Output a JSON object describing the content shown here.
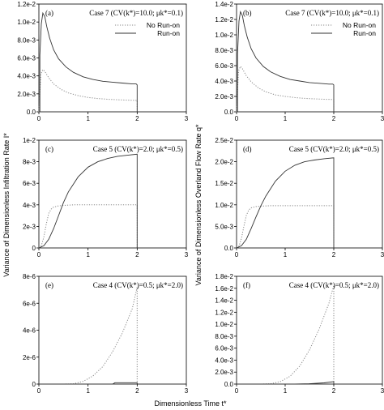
{
  "figure": {
    "ylabel_left": "Variance of Dimensionless Infiltration Rate I*",
    "ylabel_right": "Variance of Dimensionless Overland Flow Rate q*",
    "xlabel": "Dimensionless Time t*",
    "colors": {
      "run_on": "#333333",
      "no_run_on": "#888888"
    }
  },
  "chart_data": [
    {
      "type": "line",
      "id": "a",
      "label": "(a)",
      "case": "Case 7 (CV(k*)=10.0; μk*=0.1)",
      "xlim": [
        0,
        3
      ],
      "ylim": [
        0,
        0.012
      ],
      "xticks": [
        "0",
        "1",
        "2",
        "3"
      ],
      "yticks": [
        "0.0",
        "2.0e-3",
        "4.0e-3",
        "6.0e-3",
        "8.0e-3",
        "1.0e-2",
        "1.2e-2"
      ],
      "legend": [
        "No Run-on",
        "Run-on"
      ],
      "series": [
        {
          "name": "No Run-on",
          "style": "dotted",
          "x": [
            0,
            0.04,
            0.08,
            0.12,
            0.2,
            0.3,
            0.45,
            0.6,
            0.8,
            1.0,
            1.2,
            1.4,
            1.6,
            1.8,
            1.98,
            2.0,
            2.0
          ],
          "y": [
            0,
            0.0042,
            0.0047,
            0.0045,
            0.0038,
            0.0031,
            0.0025,
            0.0021,
            0.0018,
            0.0016,
            0.00148,
            0.0014,
            0.00134,
            0.0013,
            0.00127,
            0.00127,
            0
          ]
        },
        {
          "name": "Run-on",
          "style": "solid",
          "x": [
            0,
            0.02,
            0.02,
            0.05,
            0.08,
            0.12,
            0.16,
            0.22,
            0.3,
            0.4,
            0.55,
            0.7,
            0.9,
            1.1,
            1.3,
            1.5,
            1.7,
            1.9,
            1.98,
            2.0,
            2.0
          ],
          "y": [
            0,
            0,
            0.0063,
            0.0098,
            0.011,
            0.0106,
            0.0095,
            0.0082,
            0.0069,
            0.0059,
            0.005,
            0.0044,
            0.0039,
            0.0036,
            0.0034,
            0.0033,
            0.0032,
            0.0031,
            0.0031,
            0.003,
            0
          ]
        }
      ]
    },
    {
      "type": "line",
      "id": "b",
      "label": "(b)",
      "case": "Case 7 (CV(k*)=10.0; μk*=0.1)",
      "xlim": [
        0,
        3
      ],
      "ylim": [
        0,
        0.014
      ],
      "xticks": [
        "0",
        "1",
        "2",
        "3"
      ],
      "yticks": [
        "0.0",
        "2.0e-3",
        "4.0e-3",
        "6.0e-3",
        "8.0e-3",
        "1.0e-2",
        "1.2e-2",
        "1.4e-2"
      ],
      "legend": [
        "No Run-on",
        "Run-on"
      ],
      "series": [
        {
          "name": "No Run-on",
          "style": "dotted",
          "x": [
            0,
            0.04,
            0.08,
            0.12,
            0.2,
            0.3,
            0.45,
            0.6,
            0.8,
            1.0,
            1.2,
            1.4,
            1.6,
            1.8,
            1.98,
            2.0,
            2.0
          ],
          "y": [
            0,
            0.0053,
            0.0059,
            0.0056,
            0.0047,
            0.0039,
            0.0031,
            0.0026,
            0.0022,
            0.002,
            0.00185,
            0.00175,
            0.00168,
            0.00163,
            0.0016,
            0.0016,
            0
          ]
        },
        {
          "name": "Run-on",
          "style": "solid",
          "x": [
            0,
            0.02,
            0.02,
            0.05,
            0.08,
            0.12,
            0.16,
            0.22,
            0.3,
            0.4,
            0.55,
            0.7,
            0.9,
            1.1,
            1.3,
            1.5,
            1.7,
            1.9,
            1.98,
            2.0,
            2.0
          ],
          "y": [
            0,
            0,
            0.0075,
            0.0118,
            0.013,
            0.0125,
            0.0112,
            0.0097,
            0.0082,
            0.007,
            0.0059,
            0.0052,
            0.0046,
            0.0042,
            0.004,
            0.0038,
            0.0037,
            0.0036,
            0.0036,
            0.0035,
            0
          ]
        }
      ]
    },
    {
      "type": "line",
      "id": "c",
      "label": "(c)",
      "case": "Case 5 (CV(k*)=2.0; μk*=0.5)",
      "xlim": [
        0,
        3
      ],
      "ylim": [
        0,
        0.01
      ],
      "xticks": [
        "0",
        "1",
        "2",
        "3"
      ],
      "yticks": [
        "0",
        "2e-3",
        "4e-3",
        "6e-3",
        "8e-3",
        "1e-2"
      ],
      "series": [
        {
          "name": "No Run-on",
          "style": "dotted",
          "x": [
            0,
            0.05,
            0.1,
            0.15,
            0.2,
            0.25,
            0.3,
            0.4,
            0.5,
            0.7,
            1.0,
            1.3,
            1.6,
            2.0,
            2.0
          ],
          "y": [
            0,
            0.0002,
            0.001,
            0.0022,
            0.0032,
            0.0036,
            0.0038,
            0.0039,
            0.00395,
            0.004,
            0.004,
            0.004,
            0.004,
            0.004,
            0
          ]
        },
        {
          "name": "Run-on",
          "style": "solid",
          "x": [
            0,
            0.1,
            0.2,
            0.3,
            0.4,
            0.5,
            0.6,
            0.8,
            1.0,
            1.2,
            1.4,
            1.6,
            1.8,
            2.0,
            2.0
          ],
          "y": [
            0,
            0.0002,
            0.0008,
            0.0018,
            0.003,
            0.0042,
            0.0052,
            0.0066,
            0.0075,
            0.008,
            0.0083,
            0.0085,
            0.0086,
            0.0087,
            0
          ]
        }
      ]
    },
    {
      "type": "line",
      "id": "d",
      "label": "(d)",
      "case": "Case 5 (CV(k*)=2.0; μk*=0.5)",
      "xlim": [
        0,
        3
      ],
      "ylim": [
        0,
        0.025
      ],
      "xticks": [
        "0",
        "1",
        "2",
        "3"
      ],
      "yticks": [
        "0.0",
        "5.0e-3",
        "1.0e-2",
        "1.5e-2",
        "2.0e-2",
        "2.5e-2"
      ],
      "series": [
        {
          "name": "No Run-on",
          "style": "dotted",
          "x": [
            0,
            0.05,
            0.1,
            0.15,
            0.2,
            0.25,
            0.3,
            0.4,
            0.5,
            0.7,
            1.0,
            1.3,
            1.6,
            2.0,
            2.0
          ],
          "y": [
            0,
            0.0004,
            0.0022,
            0.005,
            0.0075,
            0.0088,
            0.0093,
            0.0096,
            0.0097,
            0.0098,
            0.0098,
            0.0098,
            0.0098,
            0.0098,
            0
          ]
        },
        {
          "name": "Run-on",
          "style": "solid",
          "x": [
            0,
            0.1,
            0.2,
            0.3,
            0.4,
            0.5,
            0.6,
            0.8,
            1.0,
            1.2,
            1.4,
            1.6,
            1.8,
            2.0,
            2.0
          ],
          "y": [
            0,
            0.0005,
            0.002,
            0.0045,
            0.0072,
            0.0098,
            0.012,
            0.0155,
            0.0178,
            0.0192,
            0.02,
            0.0204,
            0.0207,
            0.0209,
            0
          ]
        }
      ]
    },
    {
      "type": "line",
      "id": "e",
      "label": "(e)",
      "case": "Case 4 (CV(k*)=0.5; μk*=2.0)",
      "xlim": [
        0,
        3
      ],
      "ylim": [
        0,
        8e-06
      ],
      "xticks": [
        "0",
        "1",
        "2",
        "3"
      ],
      "yticks": [
        "0",
        "2e-6",
        "4e-6",
        "6e-6",
        "8e-6"
      ],
      "series": [
        {
          "name": "No Run-on",
          "style": "dotted",
          "x": [
            0,
            0.5,
            0.7,
            0.9,
            1.1,
            1.3,
            1.5,
            1.7,
            1.9,
            2.0,
            2.0
          ],
          "y": [
            0,
            0,
            2e-08,
            2e-07,
            6e-07,
            1.3e-06,
            2.4e-06,
            3.8e-06,
            5.6e-06,
            7.2e-06,
            0
          ]
        },
        {
          "name": "Run-on",
          "style": "solid",
          "x": [
            0,
            1.5,
            1.55,
            1.95,
            2.0,
            2.0
          ],
          "y": [
            0,
            0,
            1e-07,
            1e-07,
            1e-07,
            0
          ]
        }
      ]
    },
    {
      "type": "line",
      "id": "f",
      "label": "(f)",
      "case": "Case 4 (CV(k*)=0.5; μk*=2.0)",
      "xlim": [
        0,
        3
      ],
      "ylim": [
        0,
        0.018
      ],
      "xticks": [
        "0",
        "1",
        "2",
        "3"
      ],
      "yticks": [
        "0.0",
        "2.0e-3",
        "4.0e-3",
        "6.0e-3",
        "8.0e-3",
        "1.0e-2",
        "1.2e-2",
        "1.4e-2",
        "1.6e-2",
        "1.8e-2"
      ],
      "series": [
        {
          "name": "No Run-on",
          "style": "dotted",
          "x": [
            0,
            0.5,
            0.7,
            0.9,
            1.1,
            1.3,
            1.5,
            1.7,
            1.9,
            2.0,
            2.0
          ],
          "y": [
            0,
            0,
            5e-05,
            0.0004,
            0.0013,
            0.003,
            0.0057,
            0.0092,
            0.0135,
            0.0165,
            0
          ]
        },
        {
          "name": "Run-on",
          "style": "solid",
          "x": [
            0,
            1.2,
            1.5,
            1.8,
            2.0,
            2.0
          ],
          "y": [
            0,
            0,
            5e-05,
            0.0002,
            0.0004,
            0
          ]
        }
      ]
    }
  ]
}
